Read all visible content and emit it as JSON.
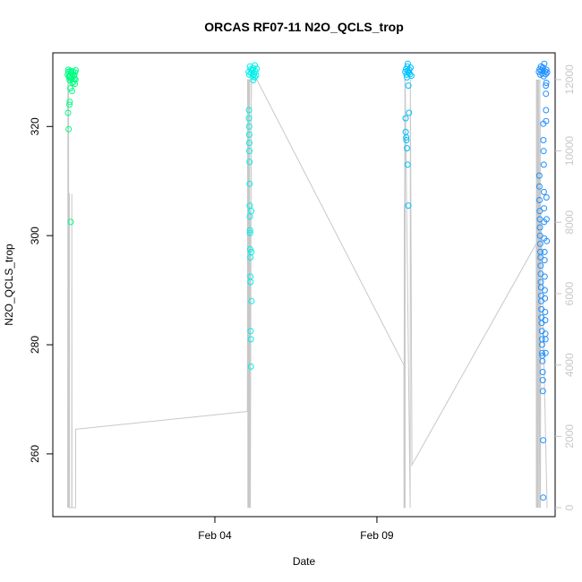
{
  "chart_data": {
    "type": "scatter",
    "title": "ORCAS RF07-11 N2O_QCLS_trop",
    "xlabel": "Date",
    "ylabel": "N2O_QCLS_trop",
    "x_ticks": [
      "Feb 04",
      "Feb 09"
    ],
    "y_ticks": [
      260,
      280,
      300,
      320
    ],
    "y2_ticks": [
      0,
      2000,
      4000,
      6000,
      8000,
      10000,
      12000
    ],
    "xlim": [
      "2016-01-30T00:00",
      "2016-02-14T12:00"
    ],
    "ylim": [
      248.5,
      333.5
    ],
    "y2lim": [
      -250,
      12750
    ],
    "colors": {
      "RF07": "#00ff80",
      "RF08": "#00ffb0",
      "RF09": "#00f0e8",
      "RF10": "#00c0ff",
      "RF11": "#1e90ff",
      "altitude_line": "#c8c8c8"
    },
    "series": [
      {
        "key": "RF07",
        "x": [
          "2016-01-30T11:00",
          "2016-01-30T11:30",
          "2016-01-30T12:00",
          "2016-01-30T12:30",
          "2016-01-30T13:00",
          "2016-01-30T13:30",
          "2016-01-30T14:00",
          "2016-01-30T14:30",
          "2016-01-30T15:00",
          "2016-01-30T15:30",
          "2016-01-30T16:00",
          "2016-01-30T16:30",
          "2016-01-30T17:00",
          "2016-01-30T11:15",
          "2016-01-30T11:45",
          "2016-01-30T12:15",
          "2016-01-30T13:15",
          "2016-01-30T14:15",
          "2016-01-30T15:15",
          "2016-01-30T16:15",
          "2016-01-30T12:45",
          "2016-01-30T13:45",
          "2016-01-30T15:45",
          "2016-01-30T16:45",
          "2016-01-30T12:30",
          "2016-01-30T13:00",
          "2016-01-30T14:30",
          "2016-01-30T11:30",
          "2016-01-30T12:00",
          "2016-01-30T13:30"
        ],
        "y": [
          329.5,
          330.0,
          329.0,
          328.5,
          330.2,
          329.8,
          328.9,
          329.6,
          330.1,
          329.3,
          328.7,
          329.9,
          330.3,
          322.5,
          319.5,
          324.0,
          302.5,
          326.5,
          328.2,
          327.8,
          329.1,
          330.0,
          329.4,
          328.6,
          324.5,
          327.0,
          328.0,
          330.4,
          329.2,
          328.8
        ]
      },
      {
        "key": "RF09",
        "x": [
          "2016-02-05T01:00",
          "2016-02-05T01:30",
          "2016-02-05T02:00",
          "2016-02-05T02:30",
          "2016-02-05T03:00",
          "2016-02-05T03:30",
          "2016-02-05T04:00",
          "2016-02-05T04:30",
          "2016-02-05T05:00",
          "2016-02-05T05:30",
          "2016-02-05T06:00",
          "2016-02-05T06:30",
          "2016-02-05T07:00",
          "2016-02-05T01:15",
          "2016-02-05T01:15",
          "2016-02-05T01:20",
          "2016-02-05T01:25",
          "2016-02-05T01:30",
          "2016-02-05T01:35",
          "2016-02-05T01:40",
          "2016-02-05T01:45",
          "2016-02-05T01:50",
          "2016-02-05T01:55",
          "2016-02-05T02:00",
          "2016-02-05T02:05",
          "2016-02-05T02:10",
          "2016-02-05T02:15",
          "2016-02-05T02:20",
          "2016-02-05T02:25",
          "2016-02-05T02:30",
          "2016-02-05T02:35",
          "2016-02-05T02:40",
          "2016-02-05T03:00",
          "2016-02-05T03:05",
          "2016-02-05T03:10",
          "2016-02-05T04:30",
          "2016-02-05T05:30"
        ],
        "y": [
          330.0,
          329.5,
          331.0,
          330.5,
          329.8,
          330.3,
          329.2,
          330.7,
          329.6,
          331.2,
          330.1,
          329.4,
          330.6,
          323.0,
          321.5,
          320.0,
          318.5,
          317.0,
          315.5,
          313.5,
          309.5,
          305.5,
          303.5,
          301.0,
          300.5,
          297.5,
          296.0,
          292.5,
          291.5,
          282.5,
          281.0,
          276.0,
          304.5,
          297.0,
          288.0,
          328.5,
          329.0
        ]
      },
      {
        "key": "RF10",
        "x": [
          "2016-02-09T21:00",
          "2016-02-09T21:30",
          "2016-02-09T22:00",
          "2016-02-09T22:30",
          "2016-02-09T23:00",
          "2016-02-09T23:30",
          "2016-02-10T00:00",
          "2016-02-10T00:30",
          "2016-02-10T01:00",
          "2016-02-10T01:30",
          "2016-02-09T21:15",
          "2016-02-09T21:45",
          "2016-02-09T22:15",
          "2016-02-09T22:45",
          "2016-02-09T23:15",
          "2016-02-09T23:45",
          "2016-02-09T21:20",
          "2016-02-09T21:50",
          "2016-02-09T22:20",
          "2016-02-09T22:50",
          "2016-02-09T23:20"
        ],
        "y": [
          330.0,
          330.5,
          329.5,
          331.0,
          330.2,
          329.8,
          330.4,
          329.6,
          330.8,
          329.3,
          321.5,
          318.0,
          316.0,
          313.0,
          305.5,
          322.5,
          319.0,
          317.5,
          329.0,
          331.5,
          327.5
        ]
      },
      {
        "key": "RF11",
        "x": [
          "2016-02-14T00:00",
          "2016-02-14T00:30",
          "2016-02-14T01:00",
          "2016-02-14T01:30",
          "2016-02-14T02:00",
          "2016-02-14T02:30",
          "2016-02-14T03:00",
          "2016-02-14T03:30",
          "2016-02-14T04:00",
          "2016-02-14T04:30",
          "2016-02-14T05:00",
          "2016-02-14T05:30",
          "2016-02-14T06:00",
          "2016-02-14T00:15",
          "2016-02-14T00:20",
          "2016-02-14T00:25",
          "2016-02-14T00:35",
          "2016-02-14T00:40",
          "2016-02-14T00:45",
          "2016-02-14T00:50",
          "2016-02-14T00:55",
          "2016-02-14T01:05",
          "2016-02-14T01:10",
          "2016-02-14T01:15",
          "2016-02-14T01:20",
          "2016-02-14T01:25",
          "2016-02-14T01:35",
          "2016-02-14T01:40",
          "2016-02-14T01:45",
          "2016-02-14T01:50",
          "2016-02-14T01:55",
          "2016-02-14T02:05",
          "2016-02-14T02:10",
          "2016-02-14T02:15",
          "2016-02-14T02:20",
          "2016-02-14T02:25",
          "2016-02-14T02:35",
          "2016-02-14T02:40",
          "2016-02-14T02:45",
          "2016-02-14T02:50",
          "2016-02-14T02:55",
          "2016-02-14T03:05",
          "2016-02-14T03:10",
          "2016-02-14T03:15",
          "2016-02-14T03:20",
          "2016-02-14T03:25",
          "2016-02-14T03:35",
          "2016-02-14T03:40",
          "2016-02-14T03:45",
          "2016-02-14T03:50",
          "2016-02-14T03:55",
          "2016-02-14T04:05",
          "2016-02-14T04:10",
          "2016-02-14T04:15",
          "2016-02-14T04:20",
          "2016-02-14T04:25",
          "2016-02-14T04:35",
          "2016-02-14T04:40",
          "2016-02-14T04:45",
          "2016-02-14T04:50",
          "2016-02-14T04:55",
          "2016-02-14T05:05",
          "2016-02-14T05:10",
          "2016-02-14T05:15",
          "2016-02-14T05:20",
          "2016-02-14T05:25",
          "2016-02-14T05:35",
          "2016-02-14T05:40",
          "2016-02-14T05:45"
        ],
        "y": [
          330.0,
          330.5,
          329.5,
          331.0,
          330.3,
          329.7,
          330.8,
          329.2,
          331.5,
          330.1,
          329.6,
          330.4,
          329.9,
          311.0,
          309.0,
          306.5,
          304.5,
          303.0,
          301.5,
          300.0,
          298.5,
          297.0,
          296.0,
          294.5,
          293.0,
          291.5,
          290.5,
          289.0,
          288.0,
          286.5,
          285.0,
          284.0,
          282.5,
          281.0,
          280.0,
          278.5,
          278.0,
          277.0,
          275.0,
          273.5,
          271.5,
          262.5,
          252.0,
          320.5,
          317.5,
          315.5,
          313.0,
          308.0,
          305.0,
          302.5,
          299.5,
          297.0,
          295.5,
          292.5,
          290.0,
          288.5,
          286.0,
          284.5,
          282.0,
          281.0,
          278.5,
          327.5,
          326.0,
          323.0,
          321.0,
          328.0,
          307.0,
          303.0,
          299.0
        ]
      }
    ],
    "altitude_line": {
      "x": [
        "2016-01-30T11:00",
        "2016-01-30T11:05",
        "2016-01-30T11:10",
        "2016-01-30T11:15",
        "2016-01-30T11:20",
        "2016-01-30T11:25",
        "2016-01-30T11:30",
        "2016-01-30T11:35",
        "2016-01-30T11:40",
        "2016-01-30T11:45",
        "2016-01-30T11:50",
        "2016-01-30T11:55",
        "2016-01-30T12:00",
        "2016-01-30T12:05",
        "2016-01-30T12:10",
        "2016-01-30T12:15",
        "2016-01-30T12:20",
        "2016-01-30T14:00",
        "2016-01-30T14:05",
        "2016-01-30T14:10",
        "2016-01-30T14:15",
        "2016-01-30T16:50",
        "2016-01-30T16:55",
        "2016-01-30T17:00",
        "2016-02-05T00:00",
        "2016-02-05T00:05",
        "2016-02-05T00:10",
        "2016-02-05T00:15",
        "2016-02-05T00:20",
        "2016-02-05T00:25",
        "2016-02-05T00:30",
        "2016-02-05T00:35",
        "2016-02-05T00:40",
        "2016-02-05T00:45",
        "2016-02-05T00:50",
        "2016-02-05T00:55",
        "2016-02-05T01:00",
        "2016-02-05T01:05",
        "2016-02-05T01:10",
        "2016-02-05T01:15",
        "2016-02-05T01:20",
        "2016-02-05T01:25",
        "2016-02-05T01:30",
        "2016-02-05T01:35",
        "2016-02-05T01:40",
        "2016-02-05T01:45",
        "2016-02-05T01:50",
        "2016-02-05T02:00",
        "2016-02-05T02:05",
        "2016-02-05T02:10",
        "2016-02-05T02:15",
        "2016-02-05T03:00",
        "2016-02-05T03:05",
        "2016-02-05T03:10",
        "2016-02-05T03:15",
        "2016-02-05T03:20",
        "2016-02-05T03:25",
        "2016-02-05T06:00",
        "2016-02-05T07:00",
        "2016-02-05T07:05",
        "2016-02-09T20:00",
        "2016-02-09T20:05",
        "2016-02-09T20:10",
        "2016-02-09T20:15",
        "2016-02-09T20:20",
        "2016-02-09T20:25",
        "2016-02-09T20:30",
        "2016-02-09T20:35",
        "2016-02-09T20:40",
        "2016-02-09T20:45",
        "2016-02-09T20:50",
        "2016-02-09T20:55",
        "2016-02-10T00:40",
        "2016-02-10T00:45",
        "2016-02-10T02:00",
        "2016-02-13T22:00",
        "2016-02-13T22:05",
        "2016-02-13T22:10",
        "2016-02-13T22:15",
        "2016-02-13T22:20",
        "2016-02-13T22:25",
        "2016-02-13T22:30",
        "2016-02-13T22:35",
        "2016-02-13T22:40",
        "2016-02-13T22:45",
        "2016-02-13T22:50",
        "2016-02-13T22:55",
        "2016-02-13T23:00",
        "2016-02-13T23:05",
        "2016-02-13T23:10",
        "2016-02-13T23:15",
        "2016-02-13T23:20",
        "2016-02-13T23:25",
        "2016-02-13T23:30",
        "2016-02-13T23:35",
        "2016-02-13T23:40",
        "2016-02-14T00:30",
        "2016-02-14T00:35",
        "2016-02-14T00:40",
        "2016-02-14T00:45",
        "2016-02-14T00:50",
        "2016-02-14T01:00",
        "2016-02-14T01:05",
        "2016-02-14T01:10",
        "2016-02-14T01:15",
        "2016-02-14T06:00",
        "2016-02-14T06:05"
      ],
      "y": [
        0,
        4000,
        11500,
        12200,
        0,
        1500,
        0,
        12000,
        11800,
        0,
        1500,
        0,
        8800,
        0,
        8800,
        8800,
        0,
        0,
        8800,
        0,
        0,
        0,
        2200,
        2200,
        2700,
        3500,
        4000,
        12000,
        12000,
        0,
        12000,
        2000,
        0,
        2000,
        0,
        12000,
        11000,
        0,
        12000,
        8800,
        0,
        12000,
        11500,
        0,
        12000,
        12000,
        0,
        8300,
        8300,
        0,
        0,
        12000,
        11500,
        12000,
        12000,
        12000,
        12000,
        12000,
        12000,
        12000,
        4000,
        0,
        0,
        8500,
        0,
        8500,
        0,
        11000,
        0,
        12000,
        0,
        12000,
        0,
        12000,
        1200,
        7400,
        0,
        12000,
        0,
        12000,
        0,
        11500,
        0,
        12000,
        0,
        12000,
        0,
        11000,
        0,
        12000,
        0,
        12000,
        0,
        12000,
        0,
        12000,
        0,
        12000,
        0,
        12000,
        0,
        10800,
        0,
        1200,
        8500,
        0,
        0
      ]
    }
  }
}
